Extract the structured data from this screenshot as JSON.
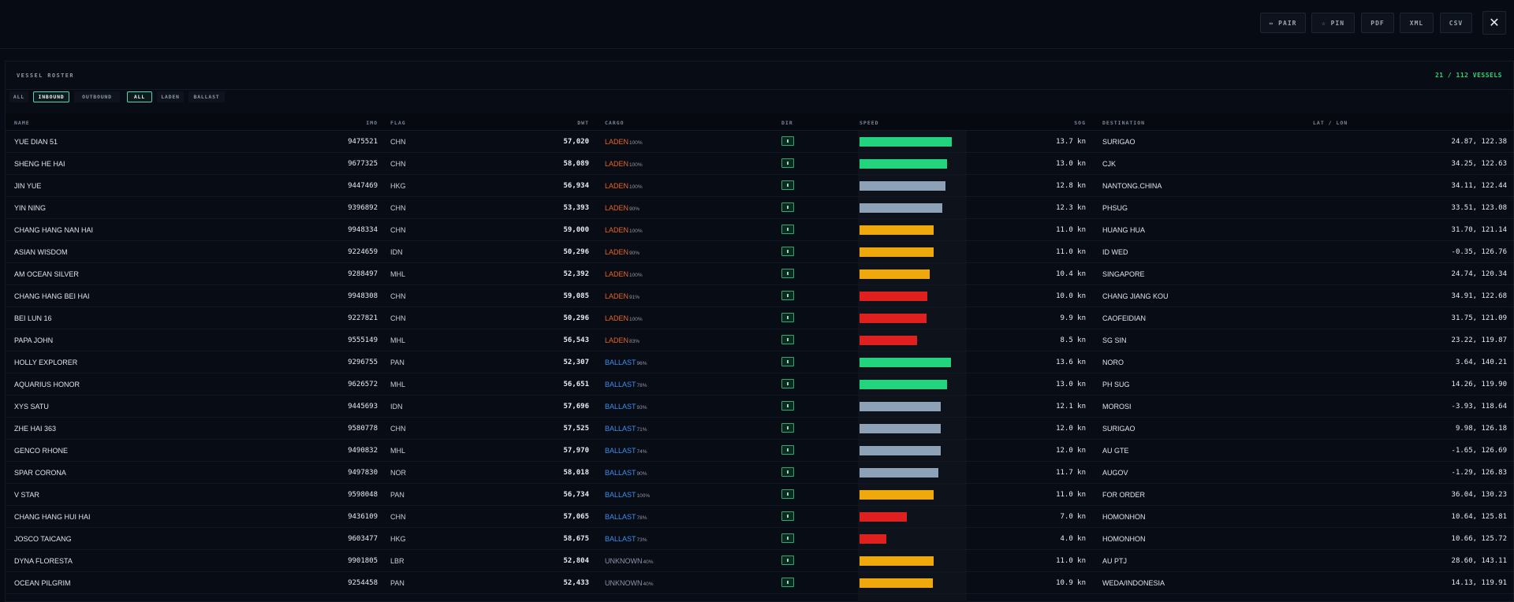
{
  "toolbar": {
    "buttons": [
      {
        "label": "⇔ PAIR"
      },
      {
        "label": "☆ PIN"
      },
      {
        "label": "PDF"
      },
      {
        "label": "XML"
      },
      {
        "label": "CSV"
      }
    ],
    "close_glyph": "✕"
  },
  "panel": {
    "title": "VESSEL ROSTER",
    "count": "21 / 112 VESSELS"
  },
  "filters": {
    "direction": [
      "ALL",
      "INBOUND",
      "OUTBOUND"
    ],
    "direction_active": "INBOUND",
    "cargo": [
      "ALL",
      "LADEN",
      "BALLAST"
    ],
    "cargo_active": "ALL"
  },
  "columns": {
    "name": "NAME",
    "imo": "IMO",
    "flag": "FLAG",
    "dwt": "DWT",
    "cargo": "CARGO",
    "dir": "DIR",
    "speed": "SPEED",
    "sog": "SOG",
    "destination": "DESTINATION",
    "latlon": "LAT / LON"
  },
  "colors": {
    "laden": "#f0641e",
    "ballast": "#3d8ff0",
    "unknown": "#8b96a5",
    "speed_fast": "#22d47e",
    "speed_mid": "#8da2b6",
    "speed_slow": "#f0a90c",
    "speed_low": "#e0201f",
    "accent": "#2fd47a"
  },
  "speed_max_kn": 14.5,
  "rows": [
    {
      "name": "YUE DIAN 51",
      "imo": "9475521",
      "flag": "CHN",
      "dwt": "57,020",
      "cargo": "LADEN",
      "cargo_pct": "100%",
      "sog": "13.7 kn",
      "speed": 13.7,
      "band": "fast",
      "dest": "SURIGAO",
      "latlon": "24.87, 122.38"
    },
    {
      "name": "SHENG HE HAI",
      "imo": "9677325",
      "flag": "CHN",
      "dwt": "58,089",
      "cargo": "LADEN",
      "cargo_pct": "100%",
      "sog": "13.0 kn",
      "speed": 13.0,
      "band": "fast",
      "dest": "CJK",
      "latlon": "34.25, 122.63"
    },
    {
      "name": "JIN YUE",
      "imo": "9447469",
      "flag": "HKG",
      "dwt": "56,934",
      "cargo": "LADEN",
      "cargo_pct": "100%",
      "sog": "12.8 kn",
      "speed": 12.8,
      "band": "mid",
      "dest": "NANTONG.CHINA",
      "latlon": "34.11, 122.44"
    },
    {
      "name": "YIN NING",
      "imo": "9396892",
      "flag": "CHN",
      "dwt": "53,393",
      "cargo": "LADEN",
      "cargo_pct": "90%",
      "sog": "12.3 kn",
      "speed": 12.3,
      "band": "mid",
      "dest": "PHSUG",
      "latlon": "33.51, 123.08"
    },
    {
      "name": "CHANG HANG NAN HAI",
      "imo": "9948334",
      "flag": "CHN",
      "dwt": "59,000",
      "cargo": "LADEN",
      "cargo_pct": "100%",
      "sog": "11.0 kn",
      "speed": 11.0,
      "band": "slow",
      "dest": "HUANG HUA",
      "latlon": "31.70, 121.14"
    },
    {
      "name": "ASIAN WISDOM",
      "imo": "9224659",
      "flag": "IDN",
      "dwt": "50,296",
      "cargo": "LADEN",
      "cargo_pct": "90%",
      "sog": "11.0 kn",
      "speed": 11.0,
      "band": "slow",
      "dest": "ID WED",
      "latlon": "-0.35, 126.76"
    },
    {
      "name": "AM OCEAN SILVER",
      "imo": "9288497",
      "flag": "MHL",
      "dwt": "52,392",
      "cargo": "LADEN",
      "cargo_pct": "100%",
      "sog": "10.4 kn",
      "speed": 10.4,
      "band": "slow",
      "dest": "SINGAPORE",
      "latlon": "24.74, 120.34"
    },
    {
      "name": "CHANG HANG BEI HAI",
      "imo": "9948308",
      "flag": "CHN",
      "dwt": "59,085",
      "cargo": "LADEN",
      "cargo_pct": "91%",
      "sog": "10.0 kn",
      "speed": 10.0,
      "band": "low",
      "dest": "CHANG JIANG KOU",
      "latlon": "34.91, 122.68"
    },
    {
      "name": "BEI LUN 16",
      "imo": "9227821",
      "flag": "CHN",
      "dwt": "50,296",
      "cargo": "LADEN",
      "cargo_pct": "100%",
      "sog": "9.9 kn",
      "speed": 9.9,
      "band": "low",
      "dest": "CAOFEIDIAN",
      "latlon": "31.75, 121.09"
    },
    {
      "name": "PAPA JOHN",
      "imo": "9555149",
      "flag": "MHL",
      "dwt": "56,543",
      "cargo": "LADEN",
      "cargo_pct": "83%",
      "sog": "8.5 kn",
      "speed": 8.5,
      "band": "low",
      "dest": "SG SIN",
      "latlon": "23.22, 119.87"
    },
    {
      "name": "HOLLY EXPLORER",
      "imo": "9296755",
      "flag": "PAN",
      "dwt": "52,307",
      "cargo": "BALLAST",
      "cargo_pct": "96%",
      "sog": "13.6 kn",
      "speed": 13.6,
      "band": "fast",
      "dest": "NORO",
      "latlon": "3.64, 140.21"
    },
    {
      "name": "AQUARIUS HONOR",
      "imo": "9626572",
      "flag": "MHL",
      "dwt": "56,651",
      "cargo": "BALLAST",
      "cargo_pct": "78%",
      "sog": "13.0 kn",
      "speed": 13.0,
      "band": "fast",
      "dest": "PH SUG",
      "latlon": "14.26, 119.90"
    },
    {
      "name": "XYS SATU",
      "imo": "9445693",
      "flag": "IDN",
      "dwt": "57,696",
      "cargo": "BALLAST",
      "cargo_pct": "93%",
      "sog": "12.1 kn",
      "speed": 12.1,
      "band": "mid",
      "dest": "MOROSI",
      "latlon": "-3.93, 118.64"
    },
    {
      "name": "ZHE HAI 363",
      "imo": "9580778",
      "flag": "CHN",
      "dwt": "57,525",
      "cargo": "BALLAST",
      "cargo_pct": "71%",
      "sog": "12.0 kn",
      "speed": 12.0,
      "band": "mid",
      "dest": "SURIGAO",
      "latlon": "9.98, 126.18"
    },
    {
      "name": "GENCO RHONE",
      "imo": "9490832",
      "flag": "MHL",
      "dwt": "57,970",
      "cargo": "BALLAST",
      "cargo_pct": "74%",
      "sog": "12.0 kn",
      "speed": 12.0,
      "band": "mid",
      "dest": "AU GTE",
      "latlon": "-1.65, 126.69"
    },
    {
      "name": "SPAR CORONA",
      "imo": "9497830",
      "flag": "NOR",
      "dwt": "58,018",
      "cargo": "BALLAST",
      "cargo_pct": "90%",
      "sog": "11.7 kn",
      "speed": 11.7,
      "band": "mid",
      "dest": "AUGOV",
      "latlon": "-1.29, 126.83"
    },
    {
      "name": "V STAR",
      "imo": "9598048",
      "flag": "PAN",
      "dwt": "56,734",
      "cargo": "BALLAST",
      "cargo_pct": "100%",
      "sog": "11.0 kn",
      "speed": 11.0,
      "band": "slow",
      "dest": "FOR ORDER",
      "latlon": "36.04, 130.23"
    },
    {
      "name": "CHANG HANG HUI HAI",
      "imo": "9436109",
      "flag": "CHN",
      "dwt": "57,065",
      "cargo": "BALLAST",
      "cargo_pct": "78%",
      "sog": "7.0 kn",
      "speed": 7.0,
      "band": "low",
      "dest": "HOMONHON",
      "latlon": "10.64, 125.81"
    },
    {
      "name": "JOSCO TAICANG",
      "imo": "9603477",
      "flag": "HKG",
      "dwt": "58,675",
      "cargo": "BALLAST",
      "cargo_pct": "73%",
      "sog": "4.0 kn",
      "speed": 4.0,
      "band": "low",
      "dest": "HOMONHON",
      "latlon": "10.66, 125.72"
    },
    {
      "name": "DYNA FLORESTA",
      "imo": "9901805",
      "flag": "LBR",
      "dwt": "52,804",
      "cargo": "UNKNOWN",
      "cargo_pct": "40%",
      "sog": "11.0 kn",
      "speed": 11.0,
      "band": "slow",
      "dest": "AU PTJ",
      "latlon": "28.60, 143.11"
    },
    {
      "name": "OCEAN PILGRIM",
      "imo": "9254458",
      "flag": "PAN",
      "dwt": "52,433",
      "cargo": "UNKNOWN",
      "cargo_pct": "40%",
      "sog": "10.9 kn",
      "speed": 10.9,
      "band": "slow",
      "dest": "WEDA/INDONESIA",
      "latlon": "14.13, 119.91"
    }
  ]
}
